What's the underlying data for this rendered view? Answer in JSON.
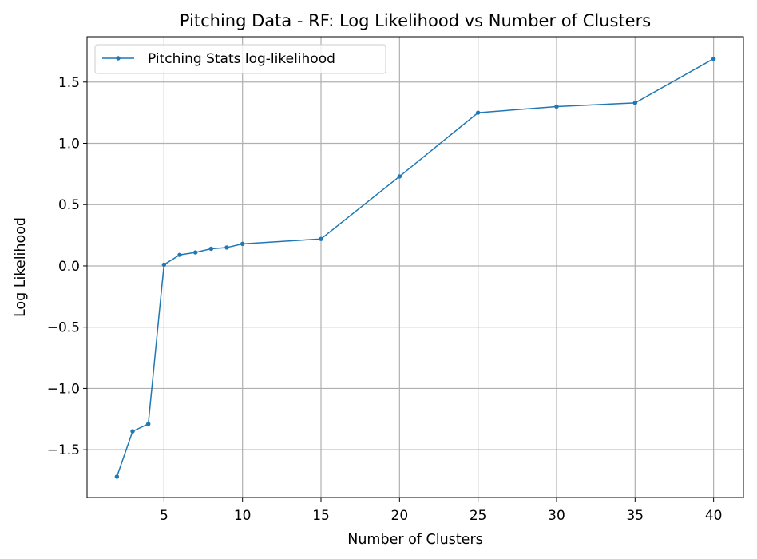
{
  "chart_data": {
    "type": "line",
    "title": "Pitching Data - RF: Log Likelihood vs Number of Clusters",
    "xlabel": "Number of Clusters",
    "ylabel": "Log Likelihood",
    "xlim": [
      0.1,
      41.9
    ],
    "ylim": [
      -1.89,
      1.87
    ],
    "xticks": [
      5,
      10,
      15,
      20,
      25,
      30,
      35,
      40
    ],
    "xtick_labels": [
      "5",
      "10",
      "15",
      "20",
      "25",
      "30",
      "35",
      "40"
    ],
    "yticks": [
      -1.5,
      -1.0,
      -0.5,
      0.0,
      0.5,
      1.0,
      1.5
    ],
    "ytick_labels": [
      "−1.5",
      "−1.0",
      "−0.5",
      "0.0",
      "0.5",
      "1.0",
      "1.5"
    ],
    "grid": true,
    "legend_position": "top-left",
    "series": [
      {
        "name": "Pitching Stats log-likelihood",
        "color": "#1f77b4",
        "marker": "dot",
        "x": [
          2,
          3,
          4,
          5,
          6,
          7,
          8,
          9,
          10,
          15,
          20,
          25,
          30,
          35,
          40
        ],
        "y": [
          -1.72,
          -1.35,
          -1.29,
          0.01,
          0.09,
          0.11,
          0.14,
          0.15,
          0.18,
          0.22,
          0.73,
          1.25,
          1.3,
          1.33,
          1.69
        ]
      }
    ]
  }
}
